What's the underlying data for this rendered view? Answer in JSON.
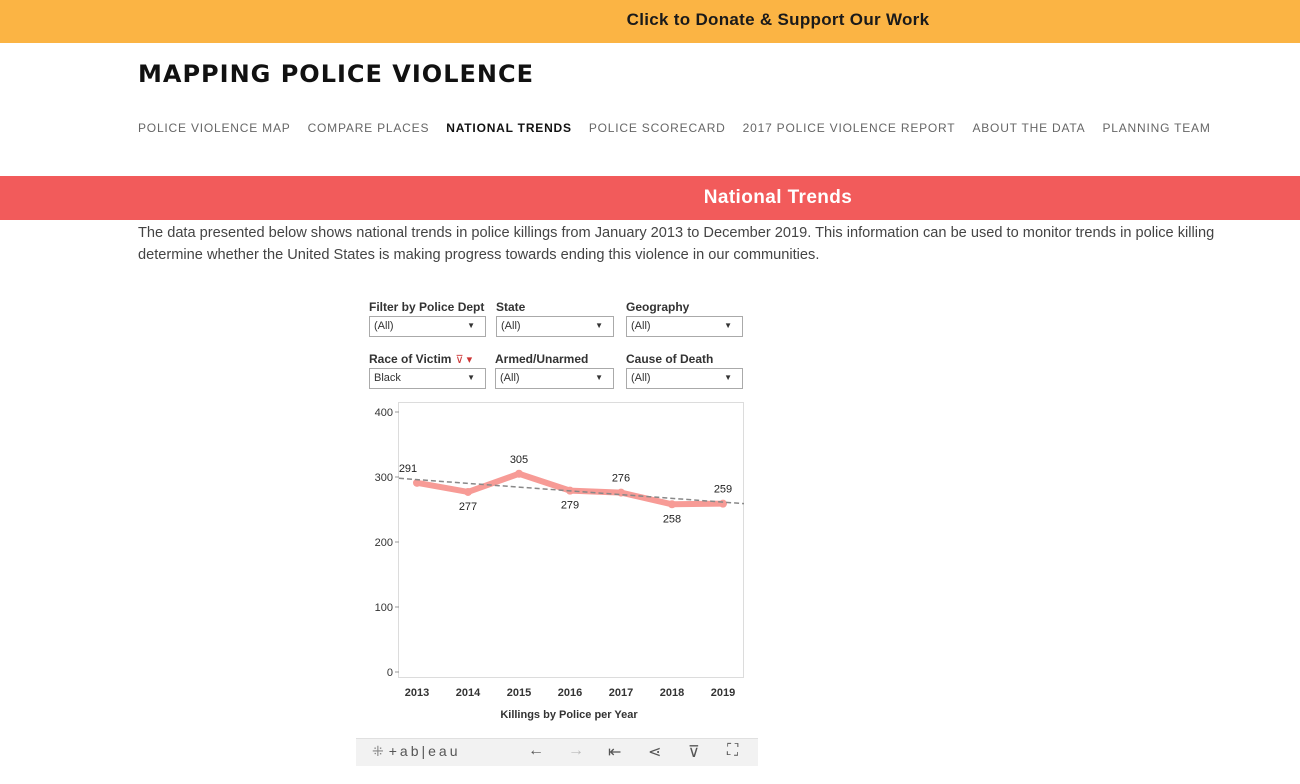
{
  "donate": {
    "label": "Click to Donate & Support Our Work",
    "bg": "#fbb444"
  },
  "site": {
    "title": "MAPPING POLICE VIOLENCE"
  },
  "nav": [
    {
      "label": "POLICE VIOLENCE MAP",
      "active": false
    },
    {
      "label": "COMPARE PLACES",
      "active": false
    },
    {
      "label": "NATIONAL TRENDS",
      "active": true
    },
    {
      "label": "POLICE SCORECARD",
      "active": false
    },
    {
      "label": "2017 POLICE VIOLENCE REPORT",
      "active": false
    },
    {
      "label": "ABOUT THE DATA",
      "active": false
    },
    {
      "label": "PLANNING TEAM",
      "active": false
    }
  ],
  "banner": {
    "title": "National Trends",
    "bg": "#f25b5b"
  },
  "intro": {
    "line1": "The data presented below shows national trends in police killings from January 2013 to December 2019. This information can be used to monitor trends in police killing",
    "line2": "determine whether the United States is making progress towards ending this violence in our communities."
  },
  "filters": [
    {
      "label": "Filter by Police Dept",
      "value": "(All)"
    },
    {
      "label": "State",
      "value": "(All)"
    },
    {
      "label": "Geography",
      "value": "(All)"
    },
    {
      "label": "Race of Victim",
      "value": "Black",
      "icon": "filter-clear-icon"
    },
    {
      "label": "Armed/Unarmed",
      "value": "(All)"
    },
    {
      "label": "Cause of Death",
      "value": "(All)"
    }
  ],
  "chart_data": {
    "type": "line",
    "title": "",
    "xlabel": "Killings by Police per Year",
    "ylabel": "",
    "categories": [
      "2013",
      "2014",
      "2015",
      "2016",
      "2017",
      "2018",
      "2019"
    ],
    "series": [
      {
        "values": [
          291,
          277,
          305,
          279,
          276,
          258,
          259
        ],
        "color": "#f79b96"
      }
    ],
    "trendline": {
      "start": 298,
      "end": 259,
      "style": "dashed",
      "color": "#888888"
    },
    "ylim": [
      0,
      400
    ],
    "yticks": [
      0,
      100,
      200,
      300,
      400
    ],
    "grid": false,
    "data_labels": [
      "291",
      "277",
      "305",
      "279",
      "276",
      "258",
      "259"
    ]
  },
  "toolbar": {
    "brand": "+ab|eau",
    "icons": [
      "undo-icon",
      "redo-icon",
      "revert-icon",
      "share-icon",
      "download-icon",
      "fullscreen-icon"
    ]
  }
}
